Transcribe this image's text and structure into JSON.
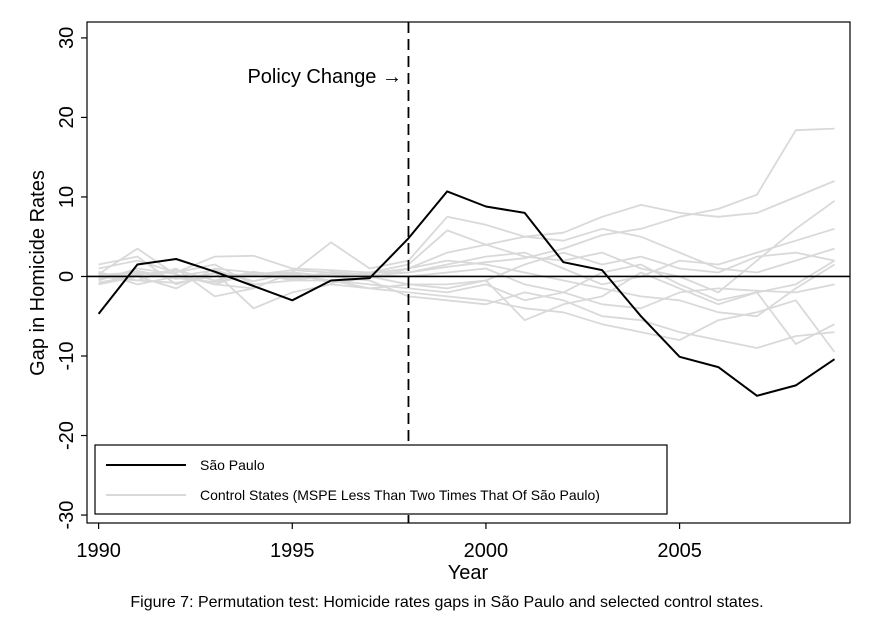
{
  "chart_data": {
    "type": "line",
    "xlabel": "Year",
    "ylabel": "Gap in Homicide Rates",
    "xlim": [
      1989.7,
      2009.4
    ],
    "ylim": [
      -31,
      32
    ],
    "x_ticks": [
      1990,
      1995,
      2000,
      2005
    ],
    "y_ticks": [
      -30,
      -20,
      -10,
      0,
      10,
      20,
      30
    ],
    "x_tick_labels": [
      "1990",
      "1995",
      "2000",
      "2005"
    ],
    "y_tick_labels": [
      "-30",
      "-20",
      "-10",
      "0",
      "10",
      "20",
      "30"
    ],
    "policy_year": 1998,
    "annotation": "Policy Change →",
    "caption": "Figure 7: Permutation test: Homicide rates gaps in São Paulo and selected control states.",
    "legend_position": "bottom-left",
    "colors": {
      "treated": "#000000",
      "controls": "#d9d9d9",
      "zero_line": "#000000"
    },
    "x": [
      1990,
      1991,
      1992,
      1993,
      1994,
      1995,
      1996,
      1997,
      1998,
      1999,
      2000,
      2001,
      2002,
      2003,
      2004,
      2005,
      2006,
      2007,
      2008,
      2009
    ],
    "series": [
      {
        "name": "São Paulo",
        "role": "treated",
        "values": [
          -4.7,
          1.5,
          2.2,
          0.6,
          -1.2,
          -3.0,
          -0.5,
          -0.2,
          4.8,
          10.7,
          8.8,
          8.0,
          1.8,
          0.8,
          -5.0,
          -10.1,
          -11.4,
          -15.0,
          -13.7,
          -10.4
        ]
      },
      {
        "name": "Control States (MSPE Less Than Two Times That Of São Paulo)",
        "role": "control",
        "values": [
          0.2,
          0.5,
          -0.3,
          0.4,
          0.1,
          -0.2,
          0.3,
          0.1,
          0.5,
          1.2,
          1.8,
          2.3,
          3.5,
          5.2,
          6.0,
          7.5,
          8.5,
          10.3,
          18.4,
          18.6
        ]
      },
      {
        "role": "control",
        "values": [
          -0.5,
          1.0,
          0.3,
          -1.0,
          0.5,
          -0.5,
          0.2,
          0.4,
          1.0,
          3.0,
          4.0,
          5.0,
          5.5,
          7.5,
          9.0,
          8.0,
          7.5,
          8.0,
          10.0,
          12.0
        ]
      },
      {
        "role": "control",
        "values": [
          1.0,
          2.0,
          0.5,
          2.5,
          2.6,
          1.0,
          0.8,
          0.5,
          1.5,
          5.8,
          4.0,
          2.5,
          2.0,
          3.0,
          1.0,
          0.0,
          -2.0,
          2.0,
          6.0,
          9.5
        ]
      },
      {
        "role": "control",
        "values": [
          0.3,
          3.5,
          0.2,
          -1.0,
          -1.5,
          0.5,
          4.3,
          1.0,
          2.0,
          7.5,
          6.5,
          5.0,
          4.5,
          6.0,
          5.0,
          3.0,
          1.0,
          0.5,
          2.0,
          3.5
        ]
      },
      {
        "role": "control",
        "values": [
          -1.0,
          0.0,
          -1.5,
          1.0,
          0.5,
          0.2,
          -0.5,
          -1.0,
          -1.5,
          -2.0,
          -1.0,
          -3.0,
          -2.0,
          -3.5,
          -4.0,
          -2.0,
          -1.5,
          -1.8,
          -2.0,
          -1.0
        ]
      },
      {
        "role": "control",
        "values": [
          0.5,
          -0.5,
          1.0,
          -2.5,
          -1.5,
          0.5,
          0.0,
          -0.5,
          -2.5,
          -3.0,
          -3.5,
          -2.0,
          -3.0,
          -5.0,
          -5.5,
          -7.0,
          -8.0,
          -9.0,
          -7.5,
          -7.0
        ]
      },
      {
        "role": "control",
        "values": [
          -0.2,
          0.3,
          0.5,
          1.5,
          -1.0,
          -0.5,
          -0.5,
          -1.5,
          -2.0,
          -2.5,
          -3.0,
          -4.0,
          -4.5,
          -6.0,
          -7.0,
          -8.0,
          -5.5,
          -4.5,
          -3.0,
          -9.5
        ]
      },
      {
        "role": "control",
        "values": [
          1.5,
          2.5,
          -1.0,
          0.5,
          -4.0,
          -2.0,
          -1.0,
          -1.5,
          -1.0,
          -1.0,
          -0.5,
          -5.5,
          -3.5,
          -2.5,
          0.5,
          -1.5,
          -3.5,
          -2.0,
          -8.5,
          -6.0
        ]
      },
      {
        "role": "control",
        "values": [
          0.0,
          -0.5,
          -0.8,
          0.0,
          0.3,
          0.5,
          0.0,
          0.5,
          0.5,
          1.5,
          2.5,
          3.0,
          1.0,
          -1.0,
          0.0,
          2.0,
          1.5,
          3.0,
          4.5,
          6.0
        ]
      },
      {
        "role": "control",
        "values": [
          -0.8,
          0.2,
          0.8,
          -0.5,
          0.6,
          -0.3,
          0.6,
          0.2,
          0.0,
          0.5,
          1.0,
          -1.0,
          -2.0,
          0.5,
          1.5,
          -1.0,
          -3.0,
          -2.0,
          -1.0,
          2.0
        ]
      },
      {
        "role": "control",
        "values": [
          0.6,
          -1.0,
          0.0,
          0.8,
          -0.6,
          0.4,
          -0.8,
          -0.2,
          1.0,
          2.0,
          1.5,
          0.5,
          -0.5,
          -1.5,
          -2.5,
          -3.0,
          -4.5,
          -5.0,
          -1.5,
          1.5
        ]
      },
      {
        "role": "control",
        "values": [
          -0.3,
          0.7,
          -0.2,
          -0.7,
          0.2,
          0.8,
          0.5,
          0.0,
          -1.0,
          -1.5,
          -0.5,
          1.5,
          3.0,
          1.5,
          2.5,
          1.0,
          0.5,
          2.5,
          3.0,
          2.0
        ]
      }
    ]
  }
}
